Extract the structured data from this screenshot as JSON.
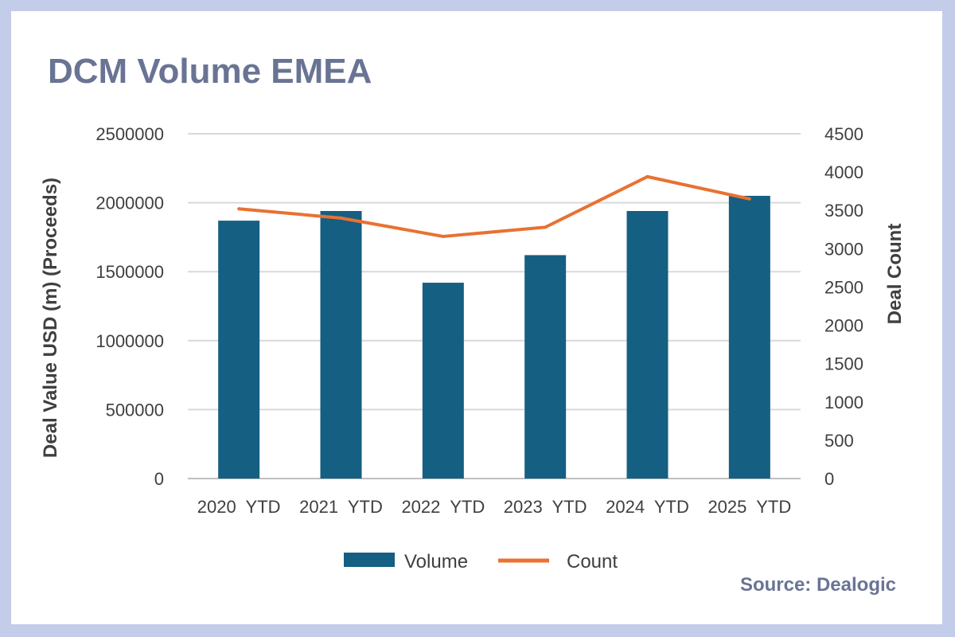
{
  "chart_data": {
    "type": "bar+line",
    "title": "DCM Volume EMEA",
    "categories": [
      "2020  YTD",
      "2021  YTD",
      "2022  YTD",
      "2023  YTD",
      "2024  YTD",
      "2025  YTD"
    ],
    "series": [
      {
        "name": "Volume",
        "type": "bar",
        "axis": "left",
        "color": "#155f82",
        "values": [
          1870000,
          1940000,
          1420000,
          1620000,
          1940000,
          2050000
        ]
      },
      {
        "name": "Count",
        "type": "line",
        "axis": "right",
        "color": "#e97132",
        "values": [
          3520,
          3400,
          3160,
          3280,
          3940,
          3650
        ]
      }
    ],
    "y_left": {
      "label": "Deal Value USD (m) (Proceeds)",
      "min": 0,
      "max": 2500000,
      "ticks": [
        "0",
        "500000",
        "1000000",
        "1500000",
        "2000000",
        "2500000"
      ]
    },
    "y_right": {
      "label": "Deal Count",
      "min": 0,
      "max": 4500,
      "ticks": [
        "0",
        "500",
        "1000",
        "1500",
        "2000",
        "2500",
        "3000",
        "3500",
        "4000",
        "4500"
      ]
    },
    "grid": true,
    "legend_position": "bottom",
    "source": "Source: Dealogic"
  },
  "colors": {
    "frame": "#c3cde9",
    "title": "#697494",
    "gridline": "#d9d9d9",
    "text": "#3f3f3f"
  }
}
